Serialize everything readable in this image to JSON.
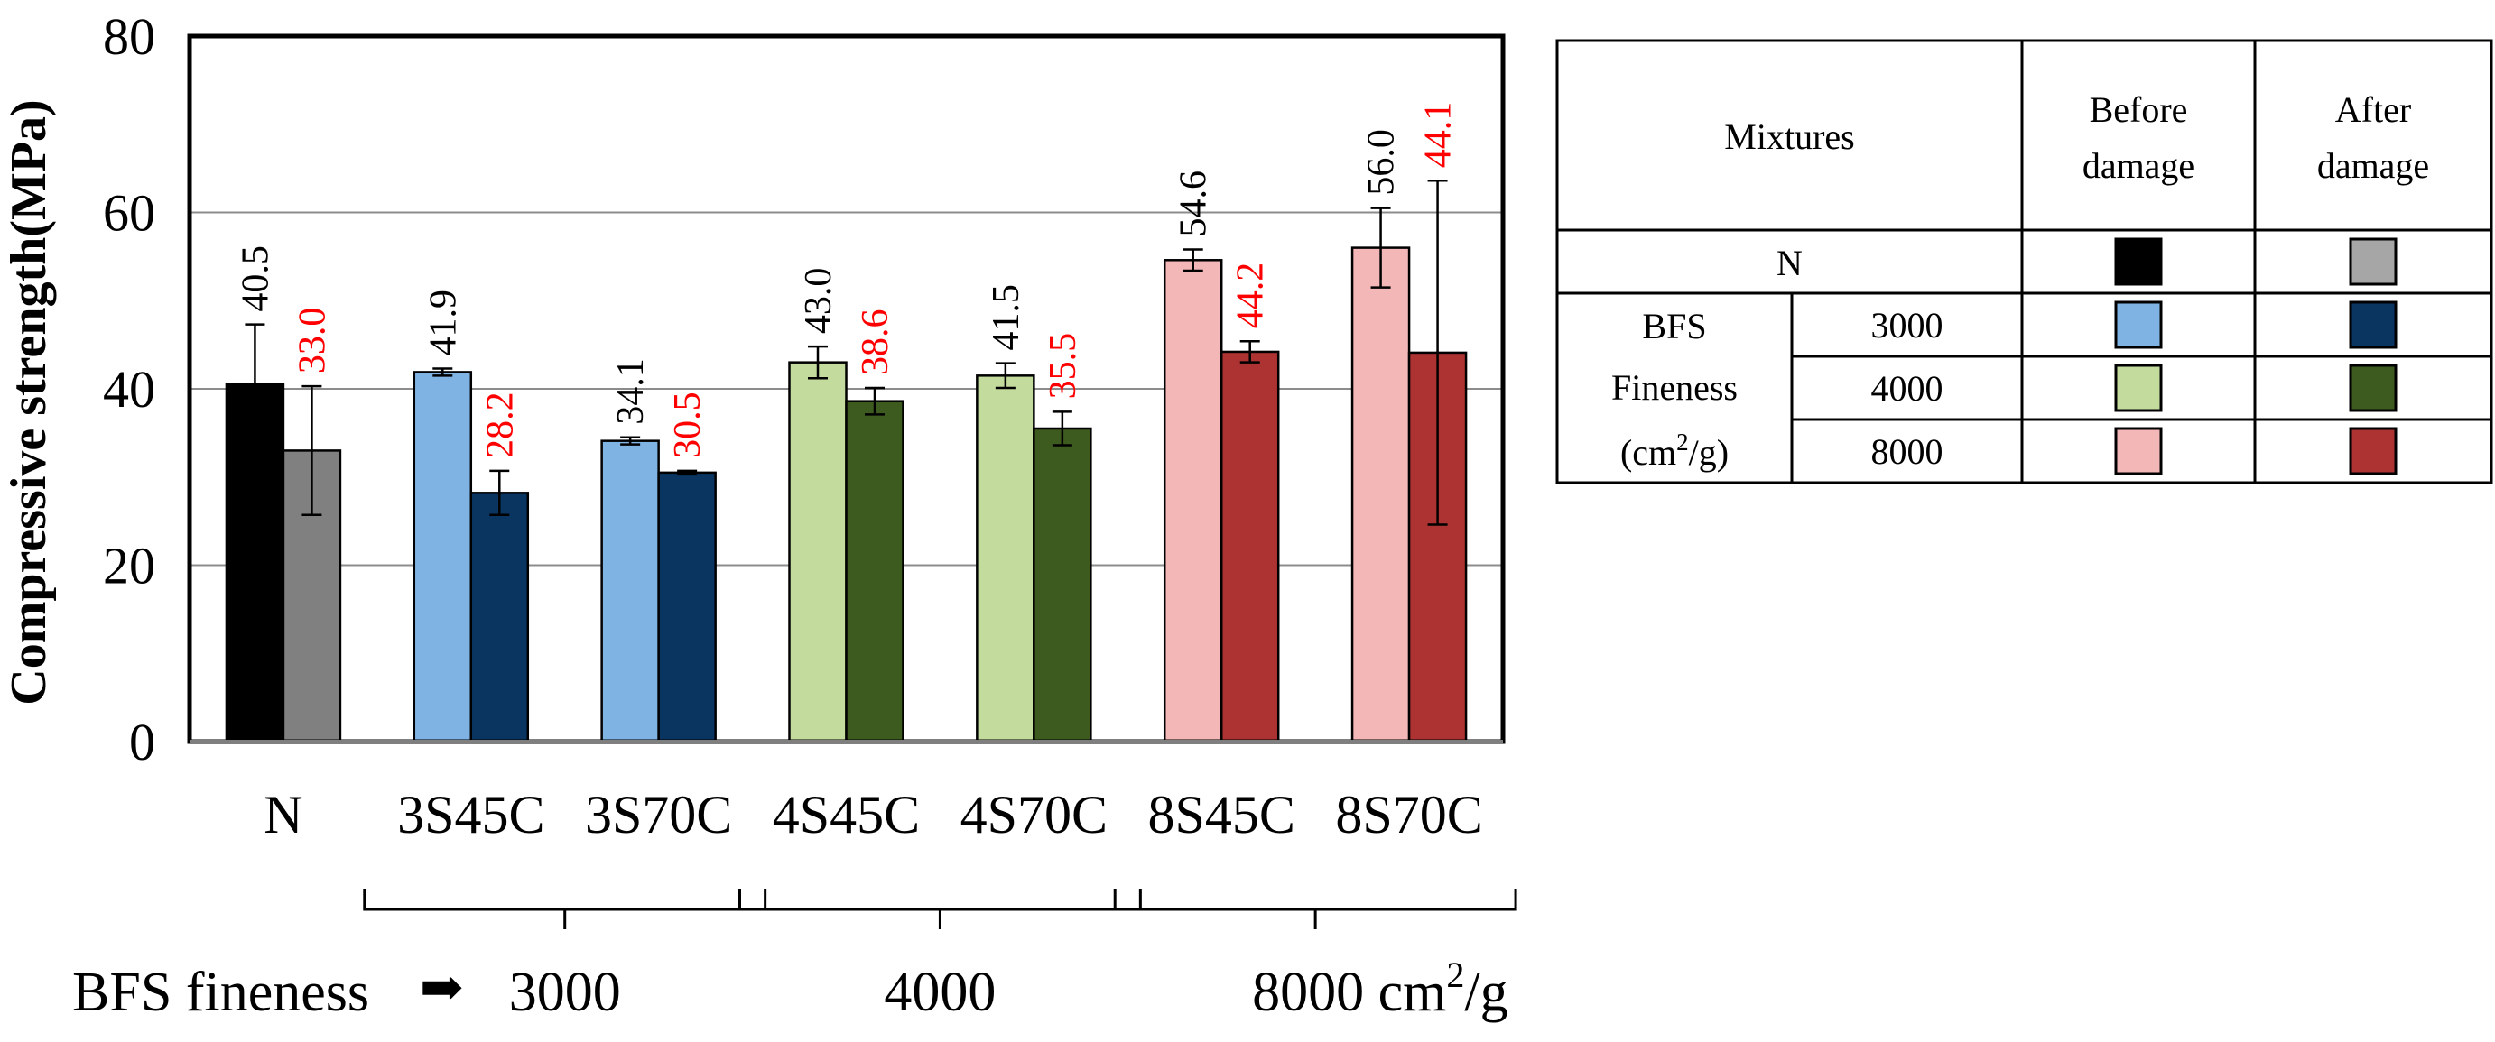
{
  "chart_data": {
    "type": "bar",
    "ylabel": "Compressive strength(MPa)",
    "xlabel": "",
    "ylim": [
      0,
      80
    ],
    "yticks": [
      "0",
      "20",
      "40",
      "60",
      "80"
    ],
    "grid": true,
    "categories": [
      "N",
      "3S45C",
      "3S70C",
      "4S45C",
      "4S70C",
      "8S45C",
      "8S70C"
    ],
    "series": [
      {
        "name": "Before damage",
        "values": [
          40.5,
          41.9,
          34.1,
          43.0,
          41.5,
          54.6,
          56.0
        ],
        "labels": [
          "40.5",
          "41.9",
          "34.1",
          "43.0",
          "41.5",
          "54.6",
          "56.0"
        ],
        "errors": [
          6.8,
          0.4,
          0.4,
          1.8,
          1.4,
          1.2,
          4.5
        ],
        "colors": [
          "#000000",
          "#7fb3e4",
          "#7fb3e4",
          "#c3dc9e",
          "#c3dc9e",
          "#f4b7b7",
          "#f4b7b7"
        ],
        "label_color": "#000000"
      },
      {
        "name": "After damage",
        "values": [
          33.0,
          28.2,
          30.5,
          38.6,
          35.5,
          44.2,
          44.1
        ],
        "labels": [
          "33.0",
          "28.2",
          "30.5",
          "38.6",
          "35.5",
          "44.2",
          "44.1"
        ],
        "errors": [
          7.3,
          2.5,
          0.2,
          1.5,
          1.9,
          1.2,
          19.5
        ],
        "colors": [
          "#808080",
          "#0a3561",
          "#0a3561",
          "#3e5b1f",
          "#3e5b1f",
          "#ad3232",
          "#ad3232"
        ],
        "label_color": "#ff0000"
      }
    ],
    "fineness_groups": [
      {
        "label": "3000",
        "from": 1,
        "to": 2
      },
      {
        "label": "4000",
        "from": 3,
        "to": 4
      },
      {
        "label": "8000 cm",
        "from": 5,
        "to": 6,
        "sup": "2",
        "suffix": "/g"
      }
    ],
    "fineness_prefix": "BFS fineness",
    "arrow_glyph": "➡"
  },
  "legend_table": {
    "header": {
      "mixtures": "Mixtures",
      "before": "Before\ndamage",
      "after": "After\ndamage"
    },
    "n_row": {
      "label": "N",
      "before_color": "#000000",
      "after_color": "#a6a6a6"
    },
    "bfs_label_lines": [
      "BFS",
      "Fineness",
      "(cm",
      "2",
      "/g)"
    ],
    "rows": [
      {
        "fineness": "3000",
        "before_color": "#7fb3e4",
        "after_color": "#0a3561"
      },
      {
        "fineness": "4000",
        "before_color": "#c3dc9e",
        "after_color": "#3e5b1f"
      },
      {
        "fineness": "8000",
        "before_color": "#f4b7b7",
        "after_color": "#ad3232"
      }
    ]
  }
}
